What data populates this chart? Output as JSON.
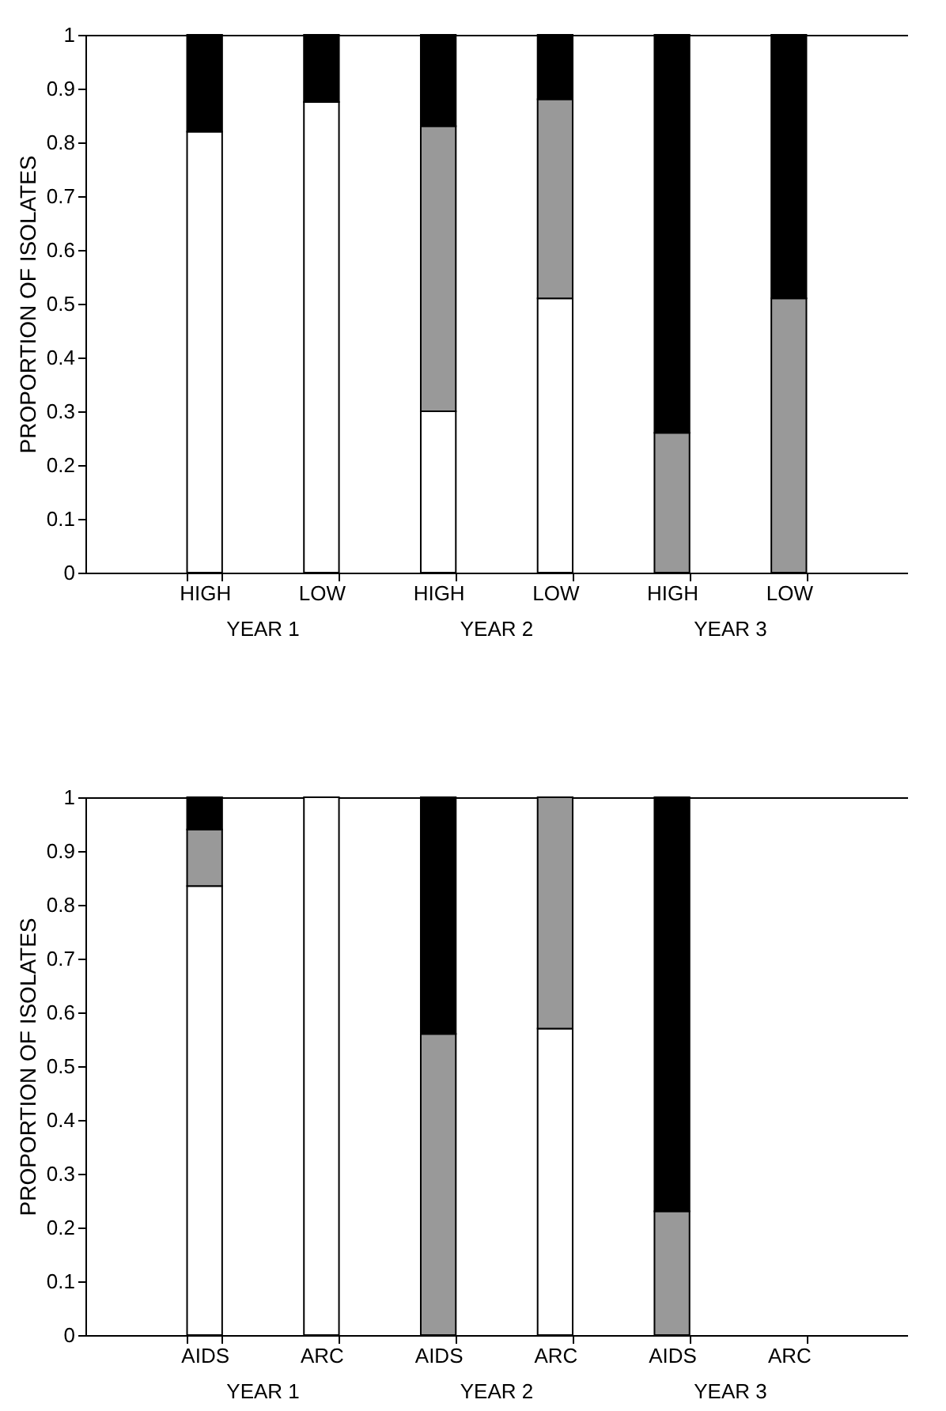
{
  "chart_data": [
    {
      "type": "bar",
      "stacked": true,
      "ylabel": "PROPORTION OF ISOLATES",
      "categories": [
        "HIGH",
        "LOW",
        "HIGH",
        "LOW",
        "HIGH",
        "LOW"
      ],
      "annotations": [
        "YEAR 1",
        "YEAR 2",
        "YEAR 3"
      ],
      "ylim": [
        0,
        1
      ],
      "yticks": [
        0,
        0.1,
        0.2,
        0.3,
        0.4,
        0.5,
        0.6,
        0.7,
        0.8,
        0.9,
        1
      ],
      "series": [
        {
          "color": "#ffffff",
          "values": [
            0.82,
            0.875,
            0.3,
            0.51,
            null,
            null
          ]
        },
        {
          "color": "#999999",
          "values": [
            null,
            null,
            0.53,
            0.37,
            0.26,
            0.51
          ]
        },
        {
          "color": "#000000",
          "values": [
            0.18,
            0.125,
            0.17,
            0.12,
            0.74,
            0.49
          ]
        }
      ]
    },
    {
      "type": "bar",
      "stacked": true,
      "ylabel": "PROPORTION OF ISOLATES",
      "categories": [
        "AIDS",
        "ARC",
        "AIDS",
        "ARC",
        "AIDS",
        "ARC"
      ],
      "annotations": [
        "YEAR 1",
        "YEAR 2",
        "YEAR 3"
      ],
      "ylim": [
        0,
        1
      ],
      "yticks": [
        0,
        0.1,
        0.2,
        0.3,
        0.4,
        0.5,
        0.6,
        0.7,
        0.8,
        0.9,
        1
      ],
      "series": [
        {
          "color": "#ffffff",
          "values": [
            0.835,
            1,
            null,
            0.57,
            null,
            null
          ]
        },
        {
          "color": "#999999",
          "values": [
            0.105,
            null,
            0.56,
            0.43,
            0.23,
            null
          ]
        },
        {
          "color": "#000000",
          "values": [
            0.06,
            null,
            0.44,
            null,
            0.77,
            null
          ]
        }
      ]
    }
  ]
}
